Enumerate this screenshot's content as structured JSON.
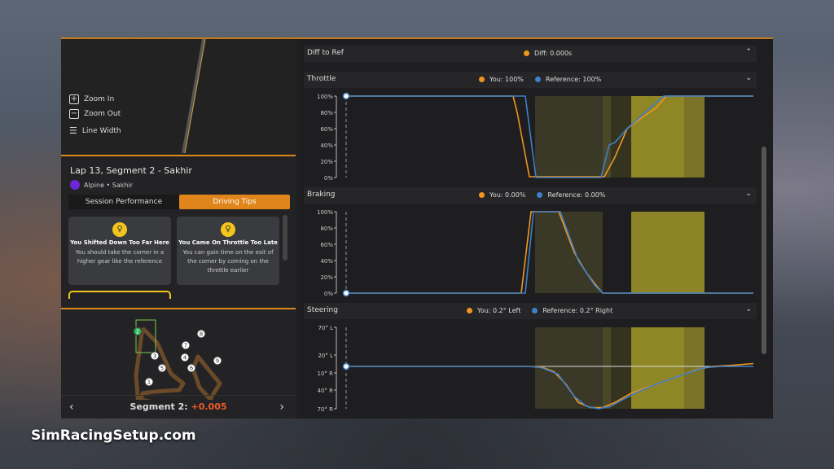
{
  "map_controls": {
    "zoom_in": "Zoom In",
    "zoom_out": "Zoom Out",
    "line_width": "Line Width"
  },
  "session": {
    "title": "Lap 13, Segment 2 - Sakhir",
    "car": "Alpine • Sakhir"
  },
  "tabs": [
    {
      "label": "Session Performance",
      "active": false
    },
    {
      "label": "Driving Tips",
      "active": true
    }
  ],
  "tips": [
    {
      "title": "You Shifted Down Too Far Here",
      "desc": "You should take the corner in a higher gear like the reference",
      "icon": "lightbulb-icon"
    },
    {
      "title": "You Came On Throttle Too Late",
      "desc": "You can gain time on the exit of the corner by coming on the throttle earlier",
      "icon": "lightbulb-icon"
    }
  ],
  "track": {
    "markers": [
      "1",
      "2",
      "3",
      "4",
      "5",
      "6",
      "7",
      "8",
      "9"
    ],
    "active_segment": "2"
  },
  "segment": {
    "label": "Segment 2:",
    "delta": "+0.005",
    "delta_color": "#f05a28"
  },
  "colors": {
    "you": "#f0961e",
    "reference": "#3f7fc8",
    "accent": "#e08519"
  },
  "diff": {
    "title": "Diff to Ref",
    "legend": "Diff: 0.000s"
  },
  "chart_data": [
    {
      "type": "line",
      "title": "Throttle",
      "legend_you": "You: 100%",
      "legend_ref": "Reference: 100%",
      "yticks": [
        "100%",
        "80%",
        "60%",
        "40%",
        "20%",
        "0%"
      ],
      "ylim": [
        0,
        100
      ],
      "series": [
        {
          "name": "You",
          "x": [
            0,
            41,
            42,
            45,
            63.4,
            66,
            69,
            73,
            76,
            78.6,
            100
          ],
          "y": [
            100,
            100,
            80,
            1,
            1,
            25,
            60,
            75,
            85,
            100,
            100
          ]
        },
        {
          "name": "Reference",
          "x": [
            0,
            44,
            46.6,
            62.6,
            64.6,
            66,
            69,
            73,
            78,
            100
          ],
          "y": [
            100,
            100,
            0,
            0,
            40,
            43,
            60,
            78,
            100,
            100
          ]
        }
      ]
    },
    {
      "type": "line",
      "title": "Braking",
      "legend_you": "You: 0.00%",
      "legend_ref": "Reference: 0.00%",
      "yticks": [
        "100%",
        "80%",
        "60%",
        "40%",
        "20%",
        "0%"
      ],
      "ylim": [
        0,
        100
      ],
      "series": [
        {
          "name": "You",
          "x": [
            0,
            43,
            45.4,
            52.2,
            56,
            59,
            61,
            63,
            100
          ],
          "y": [
            0,
            0,
            100,
            100,
            50,
            25,
            12,
            0,
            0
          ]
        },
        {
          "name": "Reference",
          "x": [
            0,
            44,
            46,
            52.6,
            57,
            61,
            63,
            100
          ],
          "y": [
            0,
            0,
            100,
            100,
            40,
            10,
            0,
            0
          ]
        }
      ]
    },
    {
      "type": "line",
      "title": "Steering",
      "legend_you": "You: 0.2° Left",
      "legend_ref": "Reference: 0.2° Right",
      "yticks": [
        "70° L",
        "20° L",
        "10° R",
        "40° R",
        "70° R"
      ],
      "ylim": [
        -70,
        70
      ],
      "series": [
        {
          "name": "You",
          "x": [
            0,
            45,
            48,
            51,
            54,
            57,
            60,
            63,
            66,
            70,
            74,
            78,
            82,
            86,
            90,
            95,
            100
          ],
          "y": [
            0,
            0,
            -1,
            -8,
            -30,
            -60,
            -68,
            -68,
            -60,
            -45,
            -35,
            -25,
            -15,
            -5,
            0,
            2,
            5
          ]
        },
        {
          "name": "Reference",
          "x": [
            0,
            45,
            48,
            52,
            56,
            59,
            62,
            65,
            68,
            72,
            76,
            80,
            84,
            88,
            92,
            100
          ],
          "y": [
            0,
            0,
            -2,
            -12,
            -50,
            -66,
            -70,
            -66,
            -55,
            -42,
            -30,
            -20,
            -10,
            -2,
            0,
            0
          ]
        }
      ]
    }
  ]
}
